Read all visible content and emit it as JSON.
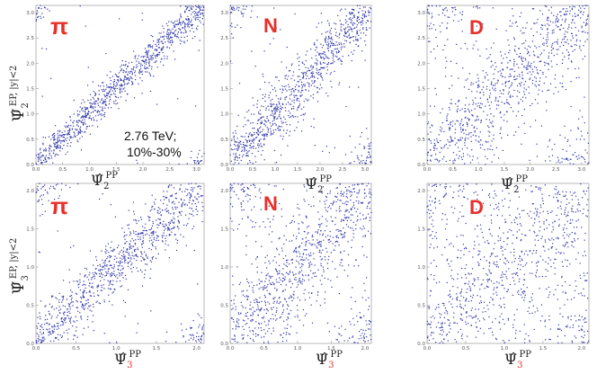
{
  "chart_data": [
    {
      "type": "scatter",
      "panel_label": "π",
      "xlim": [
        0,
        3.14159
      ],
      "ylim": [
        0,
        3.14159
      ],
      "xticks": [
        "0.0",
        "0.5",
        "1.0",
        "1.5",
        "2.0",
        "2.5",
        "3.0"
      ],
      "yticks": [
        "0.0",
        "0.5",
        "1.0",
        "1.5",
        "2.0",
        "2.5",
        "3.0"
      ],
      "pattern": "tight-diagonal",
      "n_points": 1000
    },
    {
      "type": "scatter",
      "panel_label": "N",
      "xlim": [
        0,
        3.14159
      ],
      "ylim": [
        0,
        3.14159
      ],
      "xticks": [
        "0.0",
        "0.5",
        "1.0",
        "1.5",
        "2.0",
        "2.5",
        "3.0"
      ],
      "yticks": [
        "0.0",
        "0.5",
        "1.0",
        "1.5",
        "2.0",
        "2.5",
        "3.0"
      ],
      "pattern": "diagonal",
      "n_points": 1000
    },
    {
      "type": "scatter",
      "panel_label": "D",
      "xlim": [
        0,
        3.14159
      ],
      "ylim": [
        0,
        3.14159
      ],
      "xticks": [
        "0.0",
        "0.5",
        "1.0",
        "1.5",
        "2.0",
        "2.5",
        "3.0"
      ],
      "yticks": [
        "0.0",
        "0.5",
        "1.0",
        "1.5",
        "2.0",
        "2.5",
        "3.0"
      ],
      "pattern": "broad-diagonal",
      "n_points": 1000
    },
    {
      "type": "scatter",
      "panel_label": "π",
      "xlim": [
        0,
        2.0944
      ],
      "ylim": [
        0,
        2.0944
      ],
      "xticks": [
        "0.0",
        "0.5",
        "1.0",
        "1.5",
        "2.0"
      ],
      "yticks": [
        "0.0",
        "0.5",
        "1.0",
        "1.5",
        "2.0"
      ],
      "pattern": "diagonal",
      "n_points": 1000
    },
    {
      "type": "scatter",
      "panel_label": "N",
      "xlim": [
        0,
        2.0944
      ],
      "ylim": [
        0,
        2.0944
      ],
      "xticks": [
        "0.0",
        "0.5",
        "1.0",
        "1.5",
        "2.0"
      ],
      "yticks": [
        "0.0",
        "0.5",
        "1.0",
        "1.5",
        "2.0"
      ],
      "pattern": "broad-diagonal",
      "n_points": 1000
    },
    {
      "type": "scatter",
      "panel_label": "D",
      "xlim": [
        0,
        2.0944
      ],
      "ylim": [
        0,
        2.0944
      ],
      "xticks": [
        "0.0",
        "0.5",
        "1.0",
        "1.5",
        "2.0"
      ],
      "yticks": [
        "0.0",
        "0.5",
        "1.0",
        "1.5",
        "2.0"
      ],
      "pattern": "weak-diagonal",
      "n_points": 1000
    }
  ],
  "labels": {
    "annotation_line1": "2.76 TeV;",
    "annotation_line2": "10%-30%",
    "xlabel_main": "Ψ̂",
    "xlabel_sup": "PP",
    "xlabel_sub_row1": "2",
    "xlabel_sub_row2": "3",
    "ylabel_main": "Ψ̂",
    "ylabel_sup": "EP, |y|<2",
    "ylabel_sub_row1": "2",
    "ylabel_sub_row2": "3"
  },
  "colors": {
    "points": "#2f36a8",
    "panel_label": "#e8302a",
    "sub_row2": "#e8302a"
  }
}
